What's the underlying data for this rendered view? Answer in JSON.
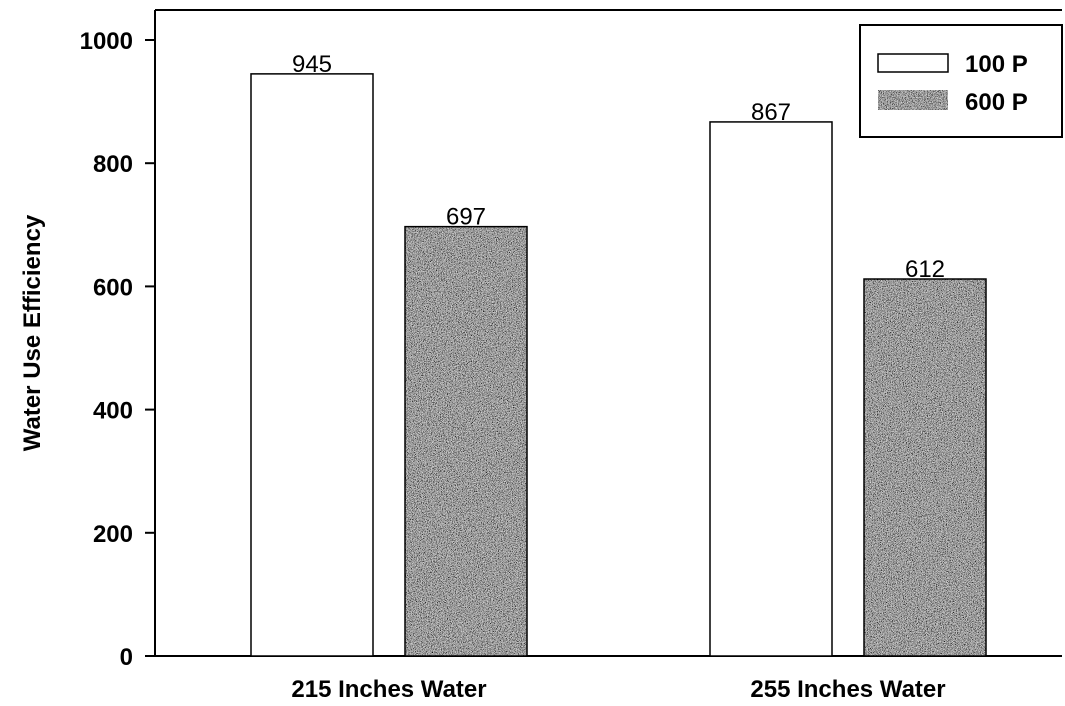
{
  "chart_data": {
    "type": "bar",
    "title": "",
    "xlabel": "",
    "ylabel": "Water Use Efficiency",
    "categories": [
      "215 Inches Water",
      "255 Inches Water"
    ],
    "series": [
      {
        "name": "100 P",
        "values": [
          945,
          867
        ],
        "color": "#ffffff",
        "pattern": "none"
      },
      {
        "name": "600 P",
        "values": [
          697,
          612
        ],
        "color": "#3a3a3a",
        "pattern": "speckled"
      }
    ],
    "ylim": [
      0,
      1000
    ],
    "yticks": [
      0,
      200,
      400,
      600,
      800,
      1000
    ],
    "data_labels": true,
    "grid": false,
    "legend_position": "top-right"
  }
}
